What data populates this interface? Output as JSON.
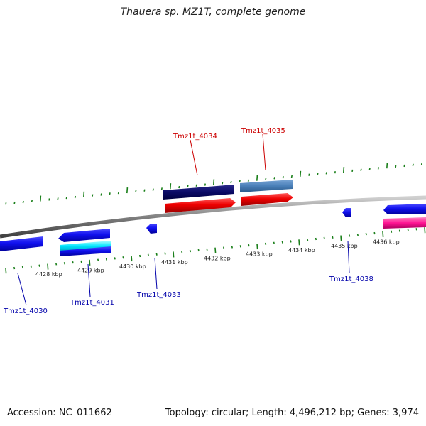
{
  "title": "Thauera sp. MZ1T, complete genome",
  "footer": {
    "accession": "Accession: NC_011662",
    "summary": "Topology: circular; Length: 4,496,212 bp; Genes: 3,974"
  },
  "colors": {
    "backbone": "#808080",
    "tick": "#1a7f1a",
    "forward_label": "#cc0000",
    "reverse_label": "#0000aa"
  },
  "kbp_ticks": [
    "4428 kbp",
    "4429 kbp",
    "4430 kbp",
    "4431 kbp",
    "4432 kbp",
    "4433 kbp",
    "4434 kbp",
    "4435 kbp",
    "4436 kbp"
  ],
  "genes": [
    {
      "label": "Tmz1t_4030",
      "strand": "reverse"
    },
    {
      "label": "Tmz1t_4031",
      "strand": "reverse"
    },
    {
      "label": "Tmz1t_4033",
      "strand": "reverse"
    },
    {
      "label": "Tmz1t_4034",
      "strand": "forward"
    },
    {
      "label": "Tmz1t_4035",
      "strand": "forward"
    },
    {
      "label": "Tmz1t_4038",
      "strand": "reverse"
    }
  ]
}
